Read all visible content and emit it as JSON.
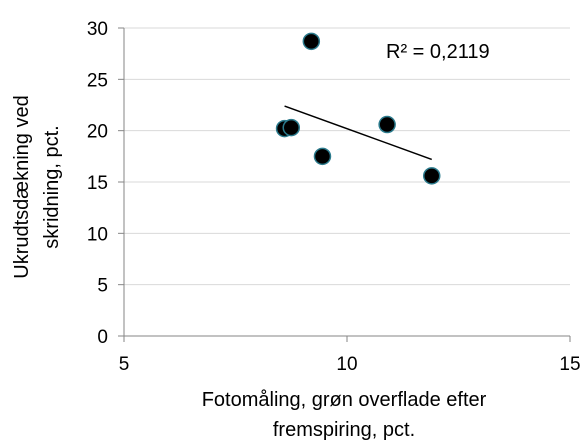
{
  "chart_data": {
    "type": "scatter",
    "title": "",
    "xlabel_lines": [
      "Fotomåling, grøn overflade efter",
      "fremspiring, pct."
    ],
    "ylabel_lines": [
      "Ukrudtsdækning ved",
      "skridning, pct."
    ],
    "xlim": [
      5,
      15
    ],
    "ylim": [
      0,
      30
    ],
    "xticks": [
      5,
      10,
      15
    ],
    "yticks": [
      0,
      5,
      10,
      15,
      20,
      25,
      30
    ],
    "grid": "horizontal",
    "legend": "none",
    "points": [
      {
        "x": 9.2,
        "y": 28.7
      },
      {
        "x": 8.6,
        "y": 20.2
      },
      {
        "x": 8.75,
        "y": 20.3
      },
      {
        "x": 9.45,
        "y": 17.5
      },
      {
        "x": 10.9,
        "y": 20.6
      },
      {
        "x": 11.9,
        "y": 15.6
      }
    ],
    "trendline": {
      "x": [
        8.6,
        11.9
      ],
      "y": [
        22.4,
        17.2
      ]
    },
    "annotation": "R² = 0,2119",
    "colors": {
      "marker_fill": "#000000",
      "marker_edge": "#2b7a8c",
      "grid": "#d9d9d9",
      "axis": "#868686",
      "trendline": "#000000"
    }
  }
}
